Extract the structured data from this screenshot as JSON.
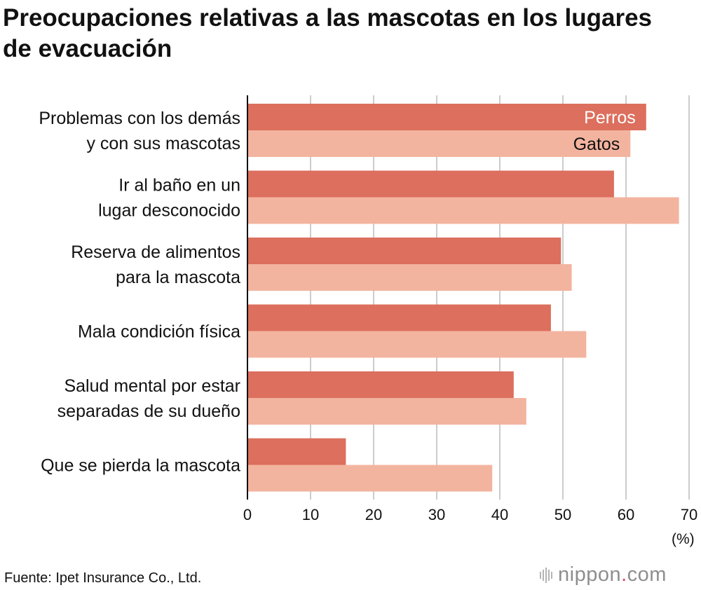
{
  "title": "Preocupaciones relativas a las mascotas en los lugares de evacuación",
  "source": "Fuente: Ipet Insurance Co., Ltd.",
  "logo": {
    "name": "nippon",
    "dot": ".",
    "tld": "com"
  },
  "colors": {
    "dogs": "#dc6f5d",
    "cats": "#f3b49f",
    "grid": "#cccccc",
    "axis": "#111111"
  },
  "chart_data": {
    "type": "bar",
    "orientation": "horizontal",
    "categories": [
      [
        "Problemas con los demás",
        "y con sus mascotas"
      ],
      [
        "Ir al baño en un",
        "lugar desconocido"
      ],
      [
        "Reserva de alimentos",
        "para la mascota"
      ],
      [
        "Mala condición física"
      ],
      [
        "Salud mental por estar",
        "separadas de su dueño"
      ],
      [
        "Que se pierda la mascota"
      ]
    ],
    "series": [
      {
        "name": "Perros",
        "values": [
          63.2,
          58.1,
          49.7,
          48.1,
          42.2,
          15.6
        ]
      },
      {
        "name": "Gatos",
        "values": [
          60.7,
          68.4,
          51.4,
          53.7,
          44.2,
          38.8
        ]
      }
    ],
    "xlim": [
      0,
      70
    ],
    "xticks": [
      0,
      10,
      20,
      30,
      40,
      50,
      60,
      70
    ],
    "xunit": "(%)",
    "legend": "inside-first-bars",
    "grid": true
  }
}
